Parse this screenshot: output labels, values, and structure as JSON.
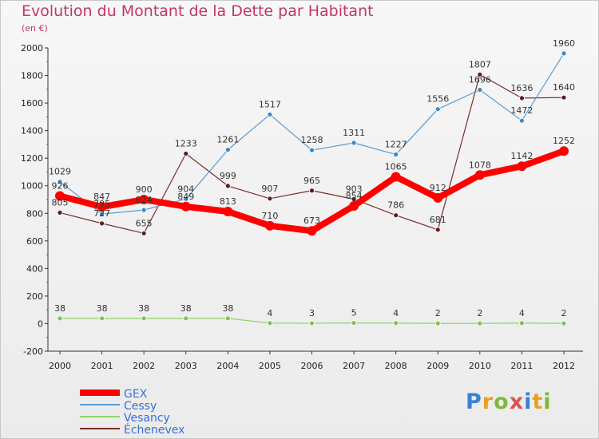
{
  "title": "Evolution du Montant de la Dette par Habitant",
  "subtitle": "(en €)",
  "logo": "Proxiti",
  "chart_data": {
    "type": "line",
    "title": "Evolution du Montant de la Dette par Habitant",
    "subtitle": "(en €)",
    "xlabel": "",
    "ylabel": "",
    "x": [
      "2000",
      "2001",
      "2002",
      "2003",
      "2004",
      "2005",
      "2006",
      "2007",
      "2008",
      "2009",
      "2010",
      "2011",
      "2012"
    ],
    "ylim": [
      -200,
      2000
    ],
    "yticks": [
      -200,
      0,
      200,
      400,
      600,
      800,
      1000,
      1200,
      1400,
      1600,
      1800,
      2000
    ],
    "grid": false,
    "legend": "bottom-left",
    "series": [
      {
        "name": "GEX",
        "color": "#ff0000",
        "values": [
          926,
          847,
          900,
          849,
          813,
          710,
          673,
          854,
          1065,
          912,
          1078,
          1142,
          1252
        ]
      },
      {
        "name": "Cessy",
        "color": "#5b9bd5",
        "values": [
          1029,
          795,
          824,
          904,
          1261,
          1517,
          1258,
          1311,
          1227,
          1556,
          1696,
          1472,
          1960
        ]
      },
      {
        "name": "Vesancy",
        "color": "#8fd36b",
        "values": [
          38,
          38,
          38,
          38,
          38,
          4,
          3,
          5,
          4,
          2,
          2,
          4,
          2
        ]
      },
      {
        "name": "Échenevex",
        "color": "#7a2c2c",
        "values": [
          805,
          727,
          655,
          1233,
          999,
          907,
          965,
          903,
          786,
          681,
          1807,
          1636,
          1640
        ]
      }
    ]
  }
}
